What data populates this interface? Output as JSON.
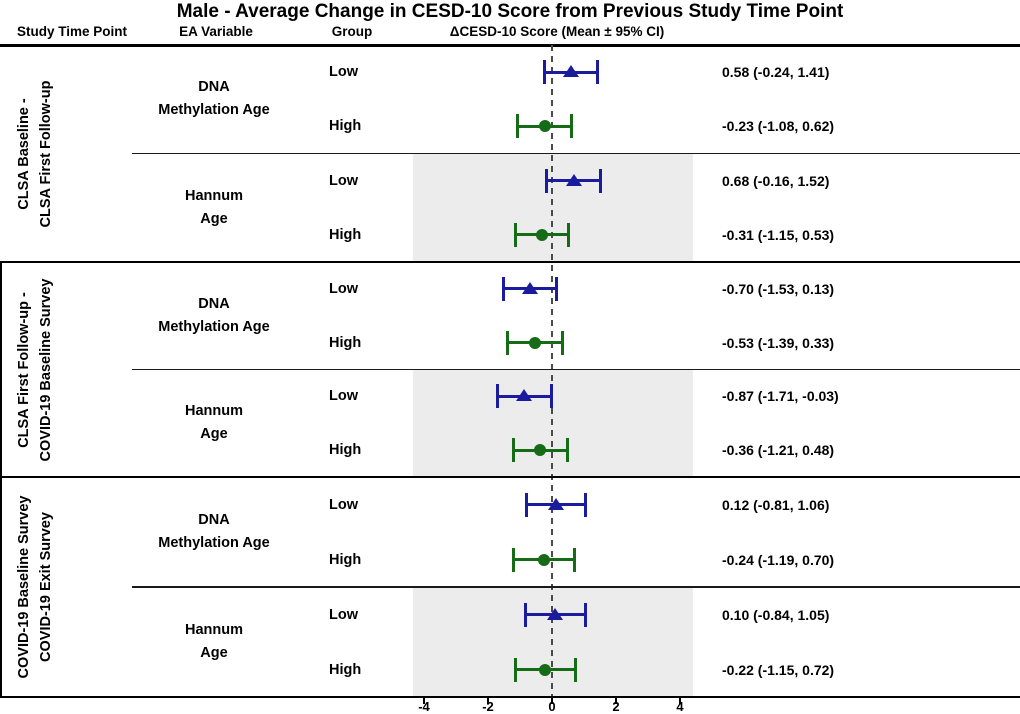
{
  "title": "Male - Average Change in CESD-10 Score from Previous Study Time Point",
  "columns": {
    "study_time_point": "Study Time Point",
    "ea_variable": "EA Variable",
    "group": "Group",
    "score": "ΔCESD-10 Score (Mean ± 95% CI)"
  },
  "colors": {
    "low_marker": "#1b1b9d",
    "high_marker": "#166b16",
    "shaded_band": "#ececec",
    "zero_line": "#4a4a4a",
    "axis_line": "#000000"
  },
  "chart_data": {
    "type": "forest",
    "title": "Male - Average Change in CESD-10 Score from Previous Study Time Point",
    "xlabel": "ΔCESD-10 Score (Mean ± 95% CI)",
    "x_ticks": [
      -4,
      -2,
      0,
      2,
      4
    ],
    "xlim": [
      -4.4,
      4.6
    ],
    "zero_reference_line": 0,
    "marker_legend": {
      "Low": "blue triangle",
      "High": "green circle"
    },
    "sections": [
      {
        "study_time_point": "CLSA Baseline - CLSA First Follow-up",
        "label_lines": [
          "CLSA Baseline -",
          "CLSA First Follow-up"
        ],
        "subgroups": [
          {
            "ea_variable": "DNA Methylation Age",
            "ea_lines": [
              "DNA",
              "Methylation Age"
            ],
            "shaded": false,
            "rows": [
              {
                "group": "Low",
                "marker": "triangle",
                "mean": 0.58,
                "ci_low": -0.24,
                "ci_high": 1.41,
                "label": "0.58 (-0.24, 1.41)"
              },
              {
                "group": "High",
                "marker": "circle",
                "mean": -0.23,
                "ci_low": -1.08,
                "ci_high": 0.62,
                "label": "-0.23 (-1.08, 0.62)"
              }
            ]
          },
          {
            "ea_variable": "Hannum Age",
            "ea_lines": [
              "Hannum",
              "Age"
            ],
            "shaded": true,
            "rows": [
              {
                "group": "Low",
                "marker": "triangle",
                "mean": 0.68,
                "ci_low": -0.16,
                "ci_high": 1.52,
                "label": "0.68 (-0.16, 1.52)"
              },
              {
                "group": "High",
                "marker": "circle",
                "mean": -0.31,
                "ci_low": -1.15,
                "ci_high": 0.53,
                "label": "-0.31 (-1.15, 0.53)"
              }
            ]
          }
        ]
      },
      {
        "study_time_point": "CLSA First Follow-up - COVID-19 Baseline Survey",
        "label_lines": [
          "CLSA First Follow-up -",
          "COVID-19 Baseline Survey"
        ],
        "subgroups": [
          {
            "ea_variable": "DNA Methylation Age",
            "ea_lines": [
              "DNA",
              "Methylation Age"
            ],
            "shaded": false,
            "rows": [
              {
                "group": "Low",
                "marker": "triangle",
                "mean": -0.7,
                "ci_low": -1.53,
                "ci_high": 0.13,
                "label": "-0.70 (-1.53, 0.13)"
              },
              {
                "group": "High",
                "marker": "circle",
                "mean": -0.53,
                "ci_low": -1.39,
                "ci_high": 0.33,
                "label": "-0.53 (-1.39, 0.33)"
              }
            ]
          },
          {
            "ea_variable": "Hannum Age",
            "ea_lines": [
              "Hannum",
              "Age"
            ],
            "shaded": true,
            "rows": [
              {
                "group": "Low",
                "marker": "triangle",
                "mean": -0.87,
                "ci_low": -1.71,
                "ci_high": -0.03,
                "label": "-0.87 (-1.71, -0.03)"
              },
              {
                "group": "High",
                "marker": "circle",
                "mean": -0.36,
                "ci_low": -1.21,
                "ci_high": 0.48,
                "label": "-0.36 (-1.21, 0.48)"
              }
            ]
          }
        ]
      },
      {
        "study_time_point": "COVID-19 Baseline Survey COVID-19 Exit Survey",
        "label_lines": [
          "COVID-19 Baseline Survey",
          "COVID-19 Exit Survey"
        ],
        "subgroups": [
          {
            "ea_variable": "DNA Methylation Age",
            "ea_lines": [
              "DNA",
              "Methylation Age"
            ],
            "shaded": false,
            "rows": [
              {
                "group": "Low",
                "marker": "triangle",
                "mean": 0.12,
                "ci_low": -0.81,
                "ci_high": 1.06,
                "label": "0.12 (-0.81, 1.06)"
              },
              {
                "group": "High",
                "marker": "circle",
                "mean": -0.24,
                "ci_low": -1.19,
                "ci_high": 0.7,
                "label": "-0.24 (-1.19, 0.70)"
              }
            ]
          },
          {
            "ea_variable": "Hannum Age",
            "ea_lines": [
              "Hannum",
              "Age"
            ],
            "shaded": true,
            "rows": [
              {
                "group": "Low",
                "marker": "triangle",
                "mean": 0.1,
                "ci_low": -0.84,
                "ci_high": 1.05,
                "label": "0.10 (-0.84, 1.05)"
              },
              {
                "group": "High",
                "marker": "circle",
                "mean": -0.22,
                "ci_low": -1.15,
                "ci_high": 0.72,
                "label": "-0.22 (-1.15, 0.72)"
              }
            ]
          }
        ]
      }
    ]
  }
}
